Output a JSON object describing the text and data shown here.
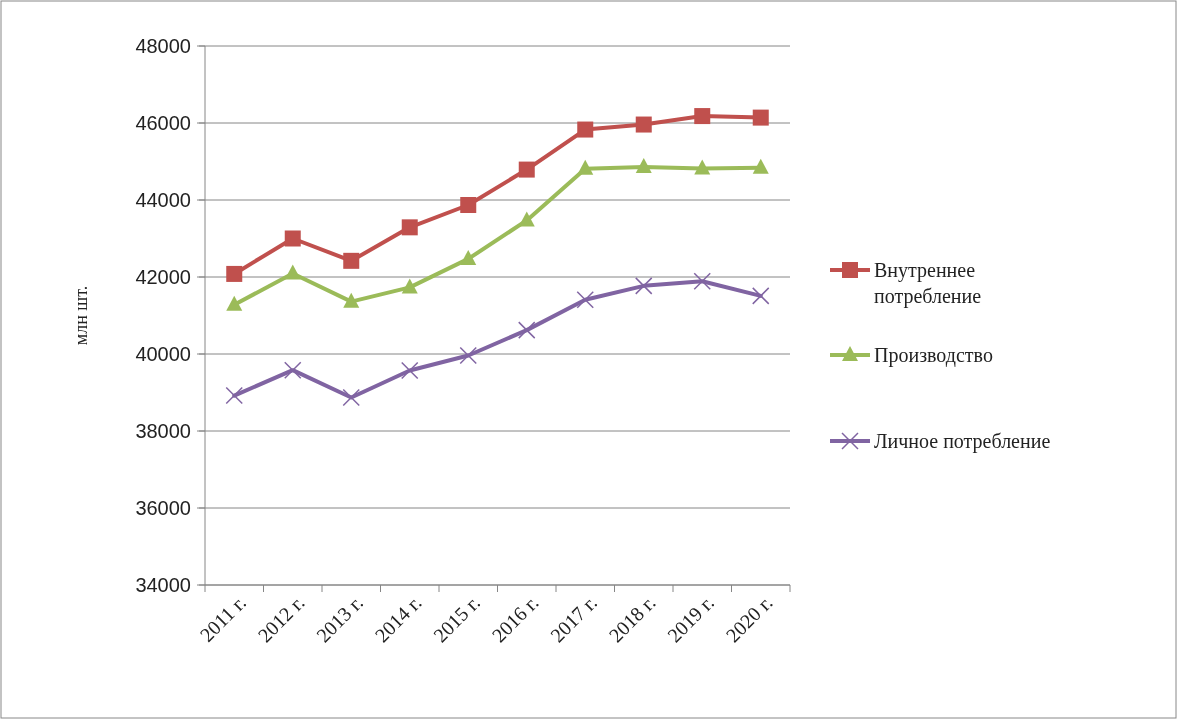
{
  "chart_data": {
    "type": "line",
    "ylabel": "млн шт.",
    "categories": [
      "2011 г.",
      "2012 г.",
      "2013 г.",
      "2014 г.",
      "2015 г.",
      "2016 г.",
      "2017 г.",
      "2018 г.",
      "2019 г.",
      "2020 г."
    ],
    "ylim": [
      34000,
      48000
    ],
    "yticks": [
      34000,
      36000,
      38000,
      40000,
      42000,
      44000,
      46000,
      48000
    ],
    "grid": "y",
    "legend": "right",
    "series": [
      {
        "name": "Внутреннее потребление",
        "color": "#c0504d",
        "marker": "square",
        "values": [
          42080,
          43000,
          42420,
          43290,
          43870,
          44790,
          45830,
          45960,
          46180,
          46140
        ]
      },
      {
        "name": "Производство",
        "color": "#9bbb59",
        "marker": "triangle",
        "values": [
          41280,
          42090,
          41360,
          41730,
          42470,
          43470,
          44810,
          44860,
          44820,
          44840
        ]
      },
      {
        "name": "Личное потребление",
        "color": "#8064a2",
        "marker": "cross",
        "values": [
          38920,
          39580,
          38870,
          39570,
          39960,
          40620,
          41410,
          41770,
          41890,
          41510
        ]
      }
    ]
  }
}
